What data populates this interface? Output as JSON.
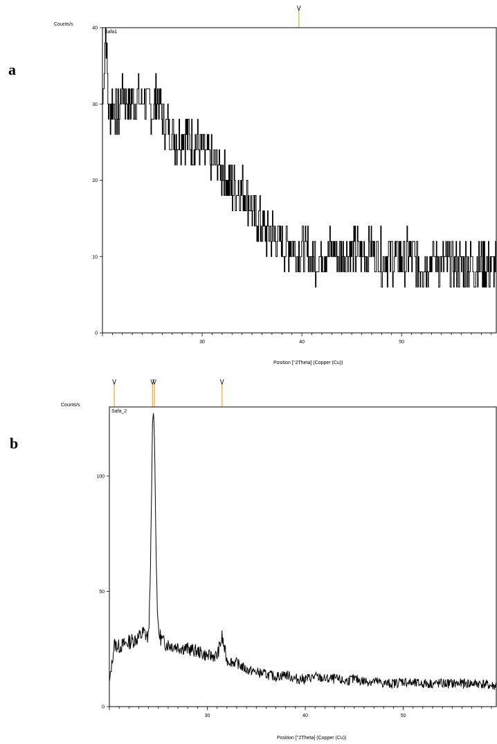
{
  "chart_data": [
    {
      "type": "line",
      "panel_label": "a",
      "series_label": "Safa1",
      "ylabel": "Counts/s",
      "xlabel": "Position [°2Theta] (Copper (Cu))",
      "xlim": [
        20,
        59.5
      ],
      "ylim": [
        0,
        40
      ],
      "xticks": [
        30,
        40,
        50
      ],
      "yticks": [
        0,
        10,
        20,
        30,
        40
      ],
      "reference_markers": [
        39.7
      ],
      "series": [
        {
          "x": [
            20.0,
            20.3,
            20.6,
            21.0,
            21.5,
            22.0,
            22.5,
            23.0,
            23.5,
            24.0,
            24.5,
            25.0,
            25.5,
            26.0,
            26.5,
            27.0,
            27.5,
            28.0,
            28.5,
            29.0,
            29.5,
            30.0,
            30.5,
            31.0,
            31.5,
            32.0,
            32.5,
            33.0,
            33.5,
            34.0,
            34.5,
            35.0,
            35.5,
            36.0,
            36.5,
            37.0,
            37.5,
            38.0,
            39.0,
            40.0,
            41.0,
            42.0,
            43.0,
            44.0,
            45.0,
            46.0,
            47.0,
            48.0,
            49.0,
            50.0,
            51.0,
            52.0,
            53.0,
            54.0,
            55.0,
            56.0,
            57.0,
            58.0,
            59.0,
            59.5
          ],
          "values": [
            30,
            40,
            29,
            30,
            28,
            32,
            30,
            31,
            30,
            31,
            30,
            29,
            31,
            28,
            27,
            26,
            25,
            26,
            26,
            25,
            25,
            24,
            23,
            22,
            22,
            21,
            20,
            19,
            19,
            19,
            18,
            16,
            15,
            14,
            13,
            13,
            12,
            12,
            11,
            11,
            10,
            10,
            11,
            10,
            11,
            10,
            11,
            10,
            10,
            10,
            10,
            9,
            10,
            9,
            9,
            9,
            9,
            9,
            9,
            9
          ]
        }
      ]
    },
    {
      "type": "line",
      "panel_label": "b",
      "series_label": "Safa_2",
      "ylabel": "Counts/s",
      "xlabel": "Position [°2Theta] (Copper (Cu))",
      "xlim": [
        20,
        59.5
      ],
      "ylim": [
        0,
        130
      ],
      "xticks": [
        30,
        40,
        50
      ],
      "yticks": [
        0,
        50,
        100
      ],
      "reference_markers": [
        20.5,
        24.4,
        24.6,
        31.5
      ],
      "series": [
        {
          "x": [
            20.0,
            20.5,
            21.0,
            22.0,
            23.0,
            23.5,
            24.0,
            24.2,
            24.4,
            24.5,
            24.6,
            24.8,
            25.0,
            25.5,
            26.0,
            27.0,
            28.0,
            29.0,
            30.0,
            31.0,
            31.5,
            32.0,
            33.0,
            34.0,
            35.0,
            36.0,
            37.0,
            38.0,
            39.0,
            40.0,
            41.0,
            42.0,
            43.0,
            44.0,
            45.0,
            46.0,
            47.0,
            48.0,
            49.0,
            50.0,
            51.0,
            52.0,
            53.0,
            54.0,
            55.0,
            56.0,
            57.0,
            58.0,
            59.0,
            59.5
          ],
          "values": [
            10,
            27,
            26,
            28,
            30,
            32,
            30,
            60,
            122,
            128,
            118,
            60,
            32,
            28,
            27,
            26,
            25,
            24,
            22,
            22,
            30,
            20,
            19,
            16,
            15,
            14,
            13,
            14,
            12,
            12,
            13,
            12,
            12,
            11,
            12,
            11,
            11,
            10,
            10,
            11,
            10,
            10,
            10,
            10,
            10,
            10,
            10,
            10,
            9,
            9
          ]
        }
      ]
    }
  ]
}
